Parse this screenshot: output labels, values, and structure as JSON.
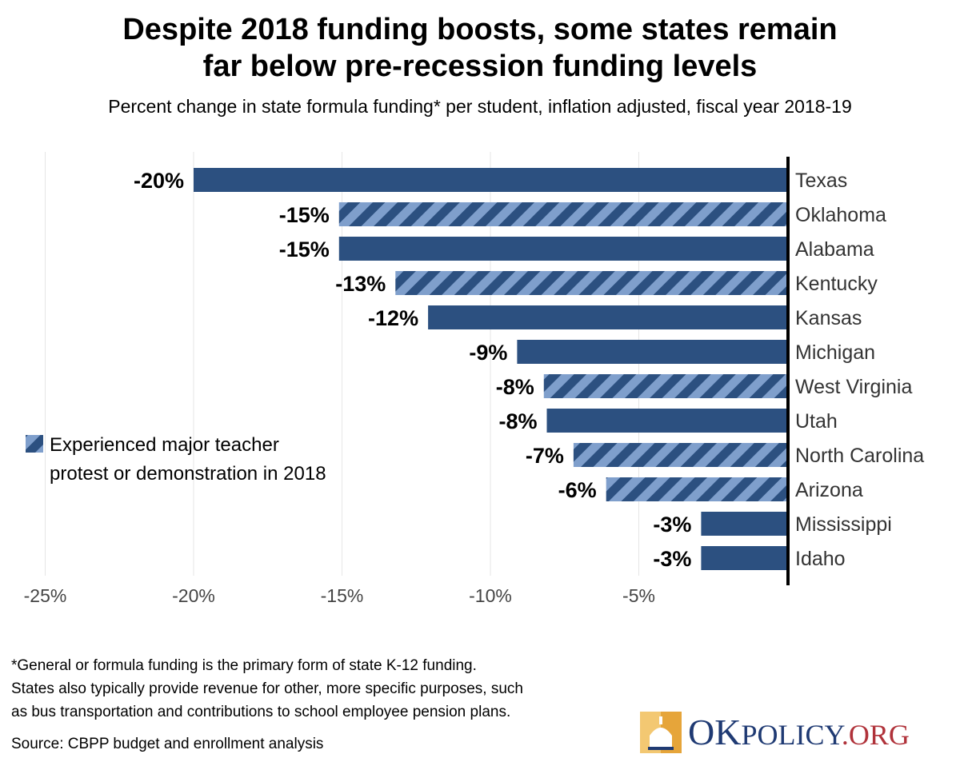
{
  "title_line1": "Despite 2018 funding boosts, some states remain",
  "title_line2": "far below pre-recession funding levels",
  "subtitle": "Percent change in state formula funding* per student, inflation adjusted, fiscal year 2018-19",
  "colors": {
    "bar_solid": "#2c5080",
    "bar_stripe_light": "#7f9fcc",
    "bar_stripe_dark": "#2c5080",
    "axis": "#000000",
    "grid": "#e6e6e6",
    "tick_text": "#444444"
  },
  "legend": {
    "line1": "Experienced major teacher",
    "line2": "protest or demonstration in 2018"
  },
  "footnote": [
    "*General or formula funding is the primary form of state K-12 funding.",
    "States also typically provide revenue for other, more specific purposes, such",
    "as bus transportation and contributions to school employee pension plans."
  ],
  "source": "Source: CBPP budget and enrollment analysis",
  "logo": {
    "ok": "OK",
    "policy": "POLICY",
    "org": ".ORG"
  },
  "chart_data": {
    "type": "bar",
    "orientation": "horizontal",
    "title": "Despite 2018 funding boosts, some states remain far below pre-recession funding levels",
    "subtitle": "Percent change in state formula funding* per student, inflation adjusted, fiscal year 2018-19",
    "categories": [
      "Texas",
      "Oklahoma",
      "Alabama",
      "Kentucky",
      "Kansas",
      "Michigan",
      "West Virginia",
      "Utah",
      "North Carolina",
      "Arizona",
      "Mississippi",
      "Idaho"
    ],
    "values": [
      -20,
      -15.1,
      -15.1,
      -13.2,
      -12.1,
      -9.1,
      -8.2,
      -8.1,
      -7.2,
      -6.1,
      -2.9,
      -2.9
    ],
    "labels": [
      "-20%",
      "-15%",
      "-15%",
      "-13%",
      "-12%",
      "-9%",
      "-8%",
      "-8%",
      "-7%",
      "-6%",
      "-3%",
      "-3%"
    ],
    "protest": [
      false,
      true,
      false,
      true,
      false,
      false,
      true,
      false,
      true,
      true,
      false,
      false
    ],
    "xlim": [
      -26,
      0
    ],
    "xticks": [
      -25,
      -20,
      -15,
      -10,
      -5
    ],
    "xtick_labels": [
      "-25%",
      "-20%",
      "-15%",
      "-10%",
      "-5%"
    ],
    "grid": true,
    "legend_position": "left"
  }
}
